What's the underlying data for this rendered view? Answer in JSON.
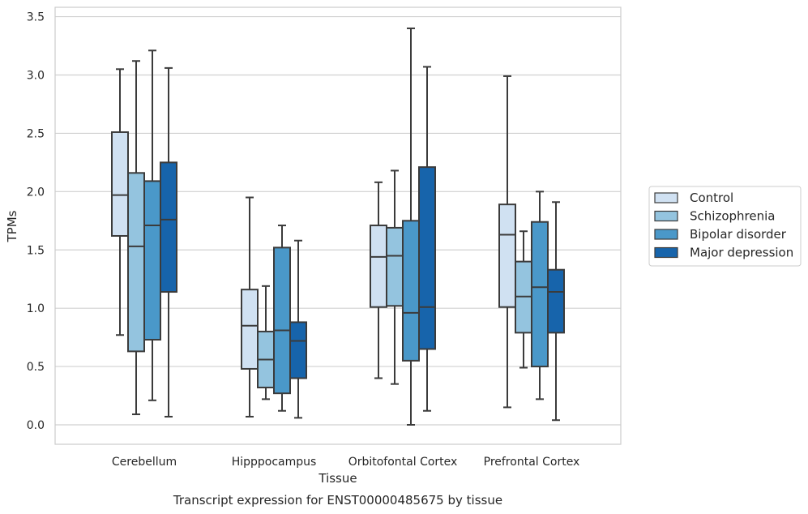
{
  "chart_data": {
    "type": "box",
    "caption": "Transcript expression for ENST00000485675 by tissue",
    "xlabel": "Tissue",
    "ylabel": "TPMs",
    "ylim": [
      -0.16,
      3.56
    ],
    "yticks": [
      0.0,
      0.5,
      1.0,
      1.5,
      2.0,
      2.5,
      3.0,
      3.5
    ],
    "ytick_labels": [
      "0.0",
      "0.5",
      "1.0",
      "1.5",
      "2.0",
      "2.5",
      "3.0",
      "3.5"
    ],
    "grid": "horizontal",
    "legend_position": "right",
    "categories": [
      "Cerebellum",
      "Hipppocampus",
      "Orbitofontal Cortex",
      "Prefrontal Cortex"
    ],
    "series": [
      {
        "name": "Control",
        "color": "#d0e1f2",
        "boxes": [
          {
            "whisker_low": 0.77,
            "q1": 1.62,
            "median": 1.97,
            "q3": 2.51,
            "whisker_high": 3.05
          },
          {
            "whisker_low": 0.07,
            "q1": 0.48,
            "median": 0.85,
            "q3": 1.16,
            "whisker_high": 1.95
          },
          {
            "whisker_low": 0.4,
            "q1": 1.01,
            "median": 1.44,
            "q3": 1.71,
            "whisker_high": 2.08
          },
          {
            "whisker_low": 0.15,
            "q1": 1.01,
            "median": 1.63,
            "q3": 1.89,
            "whisker_high": 2.99
          }
        ]
      },
      {
        "name": "Schizophrenia",
        "color": "#94c4df",
        "boxes": [
          {
            "whisker_low": 0.09,
            "q1": 0.63,
            "median": 1.53,
            "q3": 2.16,
            "whisker_high": 3.12
          },
          {
            "whisker_low": 0.22,
            "q1": 0.32,
            "median": 0.56,
            "q3": 0.8,
            "whisker_high": 1.19
          },
          {
            "whisker_low": 0.35,
            "q1": 1.02,
            "median": 1.45,
            "q3": 1.69,
            "whisker_high": 2.18
          },
          {
            "whisker_low": 0.49,
            "q1": 0.79,
            "median": 1.1,
            "q3": 1.4,
            "whisker_high": 1.66
          }
        ]
      },
      {
        "name": "Bipolar disorder",
        "color": "#4a98c9",
        "boxes": [
          {
            "whisker_low": 0.21,
            "q1": 0.73,
            "median": 1.71,
            "q3": 2.09,
            "whisker_high": 3.21
          },
          {
            "whisker_low": 0.12,
            "q1": 0.27,
            "median": 0.81,
            "q3": 1.52,
            "whisker_high": 1.71
          },
          {
            "whisker_low": 0.0,
            "q1": 0.55,
            "median": 0.96,
            "q3": 1.75,
            "whisker_high": 3.4
          },
          {
            "whisker_low": 0.22,
            "q1": 0.5,
            "median": 1.18,
            "q3": 1.74,
            "whisker_high": 2.0
          }
        ]
      },
      {
        "name": "Major depression",
        "color": "#1764ab",
        "boxes": [
          {
            "whisker_low": 0.07,
            "q1": 1.14,
            "median": 1.76,
            "q3": 2.25,
            "whisker_high": 3.06
          },
          {
            "whisker_low": 0.06,
            "q1": 0.4,
            "median": 0.72,
            "q3": 0.88,
            "whisker_high": 1.58
          },
          {
            "whisker_low": 0.12,
            "q1": 0.65,
            "median": 1.01,
            "q3": 2.21,
            "whisker_high": 3.07
          },
          {
            "whisker_low": 0.04,
            "q1": 0.79,
            "median": 1.14,
            "q3": 1.33,
            "whisker_high": 1.91
          }
        ]
      }
    ],
    "colors": {
      "frame": "#cccccc",
      "grid": "#d0d0d0",
      "line": "#3b3b3b",
      "text": "#262626"
    }
  }
}
